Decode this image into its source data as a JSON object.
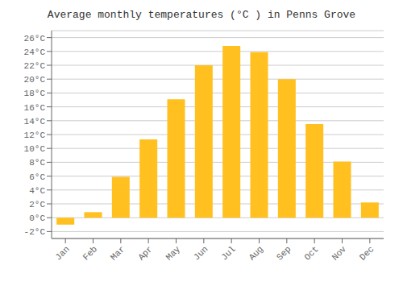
{
  "chart_data": {
    "type": "bar",
    "title": "Average monthly temperatures (°C ) in Penns Grove",
    "categories": [
      "Jan",
      "Feb",
      "Mar",
      "Apr",
      "May",
      "Jun",
      "Jul",
      "Aug",
      "Sep",
      "Oct",
      "Nov",
      "Dec"
    ],
    "values": [
      -1.0,
      0.8,
      5.9,
      11.3,
      17.1,
      22.0,
      24.8,
      23.9,
      20.0,
      13.5,
      8.1,
      2.2
    ],
    "color": "#FFC020",
    "ylim": [
      -3,
      27
    ],
    "yticks": [
      {
        "value": -2,
        "label": "-2°C"
      },
      {
        "value": 0,
        "label": "0°C"
      },
      {
        "value": 2,
        "label": "2°C"
      },
      {
        "value": 4,
        "label": "4°C"
      },
      {
        "value": 6,
        "label": "6°C"
      },
      {
        "value": 8,
        "label": "8°C"
      },
      {
        "value": 10,
        "label": "10°C"
      },
      {
        "value": 12,
        "label": "12°C"
      },
      {
        "value": 14,
        "label": "14°C"
      },
      {
        "value": 16,
        "label": "16°C"
      },
      {
        "value": 18,
        "label": "18°C"
      },
      {
        "value": 20,
        "label": "20°C"
      },
      {
        "value": 22,
        "label": "22°C"
      },
      {
        "value": 24,
        "label": "24°C"
      },
      {
        "value": 26,
        "label": "26°C"
      }
    ],
    "grid": true
  }
}
